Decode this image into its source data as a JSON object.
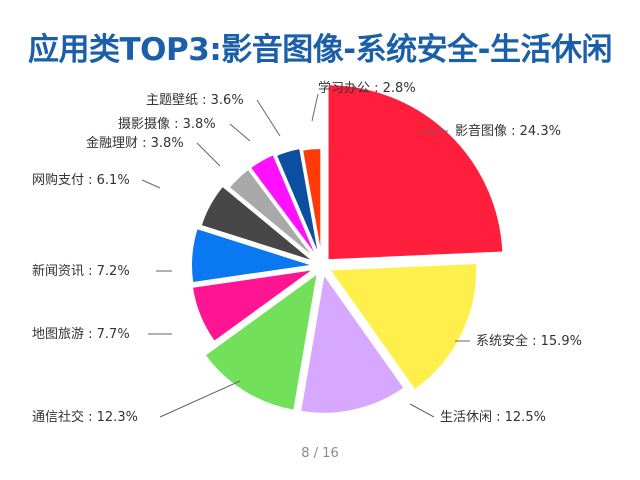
{
  "title": "应用类TOP3:影音图像-系统安全-生活休闲",
  "page_indicator": "8  /  16",
  "chart_data": {
    "type": "pie",
    "title": "应用类TOP3:影音图像-系统安全-生活休闲",
    "slices": [
      {
        "label": "影音图像",
        "value": 24.3,
        "value_label": "24.3%",
        "color": "#ff1f3d"
      },
      {
        "label": "系统安全",
        "value": 15.9,
        "value_label": "15.9%",
        "color": "#ffef4a"
      },
      {
        "label": "生活休闲",
        "value": 12.5,
        "value_label": "12.5%",
        "color": "#d6a8ff"
      },
      {
        "label": "通信社交",
        "value": 12.3,
        "value_label": "12.3%",
        "color": "#72e05a"
      },
      {
        "label": "地图旅游",
        "value": 7.7,
        "value_label": "7.7%",
        "color": "#ff1493"
      },
      {
        "label": "新闻资讯",
        "value": 7.2,
        "value_label": "7.2%",
        "color": "#0a78f0"
      },
      {
        "label": "网购支付",
        "value": 6.1,
        "value_label": "6.1%",
        "color": "#474747"
      },
      {
        "label": "金融理财",
        "value": 3.8,
        "value_label": "3.8%",
        "color": "#a9a9a9"
      },
      {
        "label": "摄影摄像",
        "value": 3.8,
        "value_label": "3.8%",
        "color": "#ff10ff"
      },
      {
        "label": "主题壁纸",
        "value": 3.6,
        "value_label": "3.6%",
        "color": "#0a4fa0"
      },
      {
        "label": "学习办公",
        "value": 2.8,
        "value_label": "2.8%",
        "color": "#ff3a0a"
      }
    ]
  }
}
